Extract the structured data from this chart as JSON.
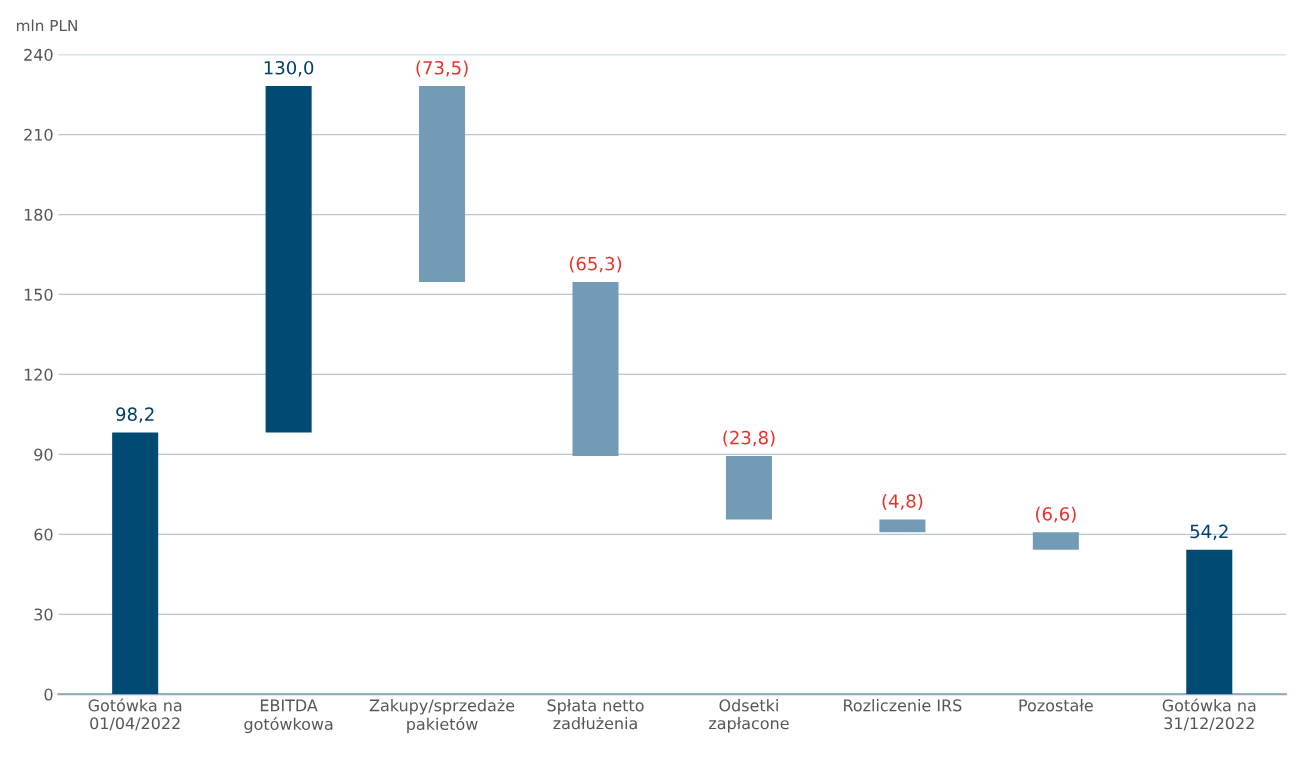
{
  "chart_data": {
    "type": "bar",
    "ylabel": "mln PLN",
    "categories": [
      "Gotówka na\n01/04/2022",
      "EBITDA\ngotówkowa",
      "Zakupy/sprzedaże\npakietów",
      "Spłata netto\nzadłużenia",
      "Odsetki\nzapłacone",
      "Rozliczenie IRS",
      "Pozostałe",
      "Gotówka na\n31/12/2022"
    ],
    "values": [
      98.2,
      130.0,
      -73.5,
      -65.3,
      -23.8,
      -4.8,
      -6.6,
      54.2
    ],
    "base": [
      0,
      98.2,
      228.2,
      154.7,
      89.4,
      65.6,
      60.8,
      0
    ],
    "colors": [
      "#004a74",
      "#004a74",
      "#739bb5",
      "#739bb5",
      "#739bb5",
      "#739bb5",
      "#739bb5",
      "#004a74"
    ],
    "value_labels": [
      "98,2",
      "130,0",
      "(73,5)",
      "(65,3)",
      "(23,8)",
      "(4,8)",
      "(6,6)",
      "54,2"
    ],
    "ylim": [
      0,
      240
    ],
    "yticks": [
      0,
      30,
      60,
      90,
      120,
      150,
      180,
      210,
      240
    ],
    "grid": "y"
  }
}
